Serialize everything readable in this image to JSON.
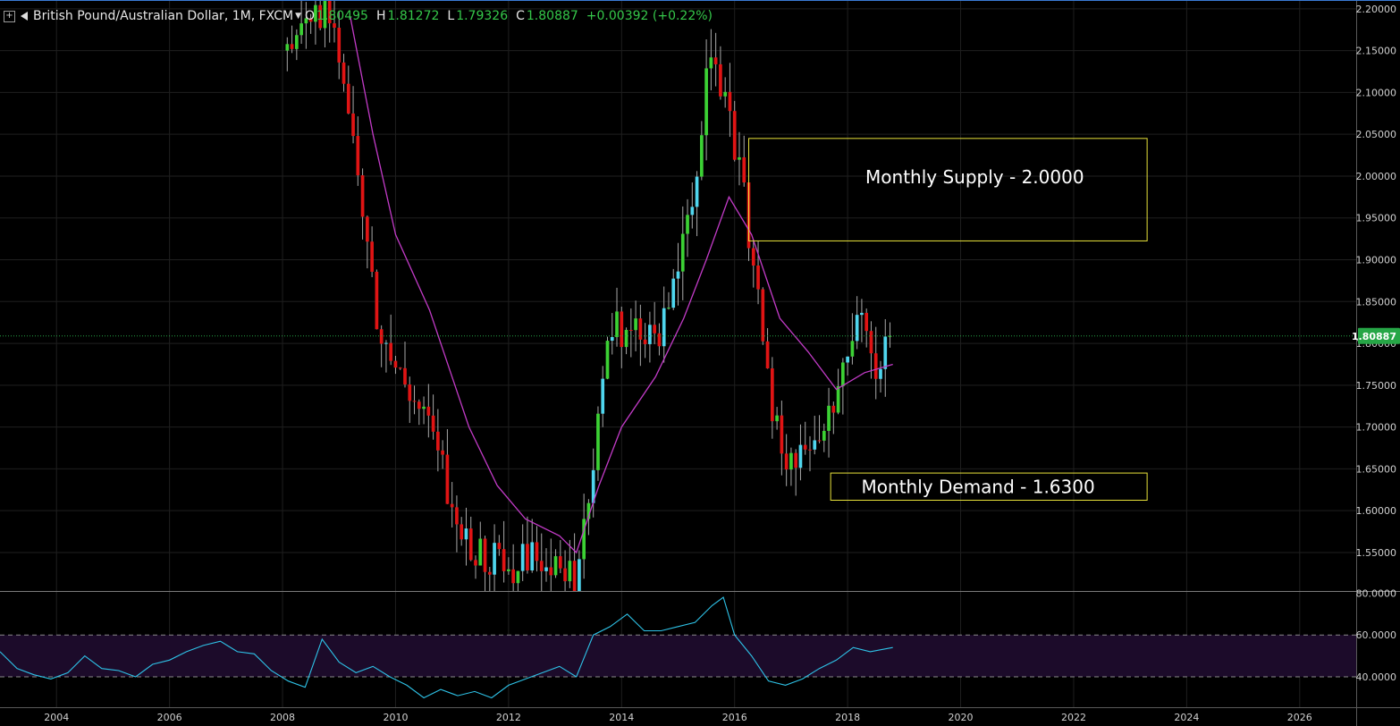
{
  "header": {
    "symbol_title": "British Pound/Australian Dollar, 1M, FXCM",
    "ohlc": [
      {
        "label": "O",
        "value": "1.80495"
      },
      {
        "label": "H",
        "value": "1.81272"
      },
      {
        "label": "L",
        "value": "1.79326"
      },
      {
        "label": "C",
        "value": "1.80887"
      }
    ],
    "change": "+0.00392 (+0.22%)"
  },
  "colors": {
    "background": "#000000",
    "bull_candle": "#3cd134",
    "bear_candle": "#e01414",
    "bull_inside_candle": "#4fd6ee",
    "moving_average": "#c23bc7",
    "rsi_line": "#2ec3e8",
    "rsi_band": "#1c0b2a",
    "zone_border": "#e8e23a",
    "price_marker": "#26a646",
    "grid": "#1f1f1f"
  },
  "chart_data": [
    {
      "type": "candlestick",
      "title": "",
      "grid": true,
      "xlim": [
        2003.0,
        2027.0
      ],
      "ylim": [
        1.504,
        2.2105
      ],
      "x_ticks": [
        "2004",
        "2006",
        "2008",
        "2010",
        "2012",
        "2014",
        "2016",
        "2018",
        "2020",
        "2022",
        "2024",
        "2026"
      ],
      "y_ticks": [
        "2.20000",
        "2.15000",
        "2.10000",
        "2.05000",
        "2.00000",
        "1.95000",
        "1.90000",
        "1.85000",
        "1.80000",
        "1.75000",
        "1.70000",
        "1.65000",
        "1.60000",
        "1.55000"
      ],
      "last_price_label": "1.80887",
      "last_price": 1.80887,
      "candles_anchor_points": [
        {
          "x": 2008.0,
          "close": 2.15
        },
        {
          "x": 2008.9,
          "close": 2.2
        },
        {
          "x": 2009.3,
          "close": 2.02
        },
        {
          "x": 2009.7,
          "close": 1.81
        },
        {
          "x": 2010.6,
          "close": 1.7
        },
        {
          "x": 2011.2,
          "close": 1.56
        },
        {
          "x": 2012.0,
          "close": 1.53
        },
        {
          "x": 2012.6,
          "close": 1.55
        },
        {
          "x": 2013.2,
          "close": 1.51
        },
        {
          "x": 2013.8,
          "close": 1.82
        },
        {
          "x": 2014.7,
          "close": 1.81
        },
        {
          "x": 2015.3,
          "close": 1.98
        },
        {
          "x": 2015.6,
          "close": 2.17
        },
        {
          "x": 2016.2,
          "close": 1.96
        },
        {
          "x": 2016.6,
          "close": 1.75
        },
        {
          "x": 2016.9,
          "close": 1.64
        },
        {
          "x": 2017.2,
          "close": 1.66
        },
        {
          "x": 2017.6,
          "close": 1.7
        },
        {
          "x": 2018.2,
          "close": 1.83
        },
        {
          "x": 2018.5,
          "close": 1.77
        },
        {
          "x": 2018.8,
          "close": 1.80887
        }
      ],
      "moving_average_anchor_points": [
        {
          "x": 2009.2,
          "y": 2.19
        },
        {
          "x": 2009.6,
          "y": 2.05
        },
        {
          "x": 2010.0,
          "y": 1.93
        },
        {
          "x": 2010.6,
          "y": 1.84
        },
        {
          "x": 2011.3,
          "y": 1.7
        },
        {
          "x": 2011.8,
          "y": 1.63
        },
        {
          "x": 2012.3,
          "y": 1.59
        },
        {
          "x": 2012.9,
          "y": 1.57
        },
        {
          "x": 2013.2,
          "y": 1.55
        },
        {
          "x": 2013.6,
          "y": 1.63
        },
        {
          "x": 2014.0,
          "y": 1.7
        },
        {
          "x": 2014.6,
          "y": 1.76
        },
        {
          "x": 2015.1,
          "y": 1.83
        },
        {
          "x": 2015.5,
          "y": 1.9
        },
        {
          "x": 2015.9,
          "y": 1.975
        },
        {
          "x": 2016.3,
          "y": 1.93
        },
        {
          "x": 2016.8,
          "y": 1.83
        },
        {
          "x": 2017.3,
          "y": 1.79
        },
        {
          "x": 2017.8,
          "y": 1.745
        },
        {
          "x": 2018.3,
          "y": 1.765
        },
        {
          "x": 2018.8,
          "y": 1.775
        }
      ],
      "zones": [
        {
          "label": "Monthly Supply - 2.0000",
          "x_start": 2016.25,
          "x_end": 2023.3,
          "y_low": 1.9225,
          "y_high": 2.045
        },
        {
          "label": "Monthly Demand - 1.6300",
          "x_start": 2017.7,
          "x_end": 2023.3,
          "y_low": 1.6125,
          "y_high": 1.645
        }
      ]
    },
    {
      "type": "line",
      "title": "",
      "grid": true,
      "xlim": [
        2003.0,
        2027.0
      ],
      "ylim": [
        25.5,
        81.0
      ],
      "y_ticks": [
        "80.0000",
        "60.0000",
        "40.0000"
      ],
      "bands": [
        40,
        60
      ],
      "series": [
        {
          "x": [
            2003.0,
            2003.3,
            2003.6,
            2003.9,
            2004.2,
            2004.5,
            2004.8,
            2005.1,
            2005.4,
            2005.7,
            2006.0,
            2006.3,
            2006.6,
            2006.9,
            2007.2,
            2007.5,
            2007.8,
            2008.1,
            2008.4,
            2008.7,
            2009.0,
            2009.3,
            2009.6,
            2009.9,
            2010.2,
            2010.5,
            2010.8,
            2011.1,
            2011.4,
            2011.7,
            2012.0,
            2012.3,
            2012.6,
            2012.9,
            2013.2,
            2013.5,
            2013.8,
            2014.1,
            2014.4,
            2014.7,
            2015.0,
            2015.3,
            2015.6,
            2015.8,
            2016.0,
            2016.3,
            2016.6,
            2016.9,
            2017.2,
            2017.5,
            2017.8,
            2018.1,
            2018.4,
            2018.8
          ],
          "y": [
            52,
            44,
            41,
            39,
            42,
            50,
            44,
            43,
            40,
            46,
            48,
            52,
            55,
            57,
            52,
            51,
            43,
            38,
            35,
            58,
            47,
            42,
            45,
            40,
            36,
            30,
            34,
            31,
            33,
            30,
            36,
            39,
            42,
            45,
            40,
            60,
            64,
            70,
            62,
            62,
            64,
            66,
            74,
            78,
            60,
            50,
            38,
            36,
            39,
            44,
            48,
            54,
            52,
            54
          ]
        }
      ]
    }
  ]
}
